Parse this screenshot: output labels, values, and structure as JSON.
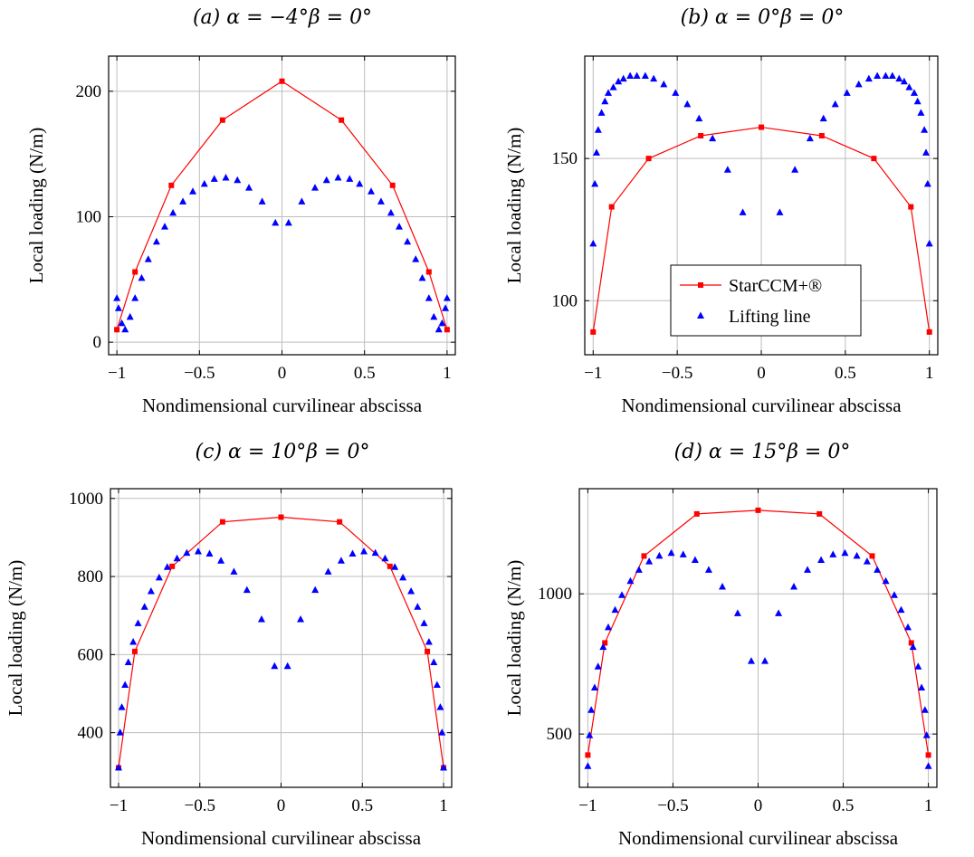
{
  "colors": {
    "cfd": "#ff0000",
    "ll": "#0000ff",
    "grid": "#bdbdbd"
  },
  "legend": {
    "entries": [
      "StarCCM+®",
      "Lifting line"
    ],
    "panel": 1,
    "placement": "bottom-center"
  },
  "chart_data": [
    {
      "type": "line",
      "title": {
        "prefix": "(a)",
        "body": "α = −4°β = 0°"
      },
      "xlabel": "Nondimensional curvilinear abscissa",
      "ylabel": "Local loading (N/m)",
      "xlim": [
        -1.05,
        1.05
      ],
      "ylim": [
        -10,
        228
      ],
      "xticks": [
        -1,
        -0.5,
        0,
        0.5,
        1
      ],
      "xtick_labels": [
        "−1",
        "−0.5",
        "0",
        "0.5",
        "1"
      ],
      "yticks": [
        0,
        100,
        200
      ],
      "ytick_labels": [
        "0",
        "100",
        "200"
      ],
      "grid": true,
      "series": [
        {
          "name": "StarCCM+®",
          "mode": "line",
          "x": [
            -1,
            -0.89,
            -0.67,
            -0.36,
            0,
            0.36,
            0.67,
            0.89,
            1
          ],
          "y": [
            10,
            56,
            125,
            177,
            208,
            177,
            125,
            56,
            10
          ]
        },
        {
          "name": "Lifting line",
          "mode": "scatter",
          "x": [
            -1,
            -0.99,
            -0.97,
            -0.95,
            -0.92,
            -0.89,
            -0.85,
            -0.81,
            -0.76,
            -0.71,
            -0.66,
            -0.6,
            -0.54,
            -0.47,
            -0.41,
            -0.34,
            -0.27,
            -0.2,
            -0.12,
            -0.04,
            0.04,
            0.12,
            0.2,
            0.27,
            0.34,
            0.41,
            0.47,
            0.54,
            0.6,
            0.66,
            0.71,
            0.76,
            0.81,
            0.85,
            0.89,
            0.92,
            0.95,
            0.97,
            0.99,
            1
          ],
          "y": [
            35,
            27,
            15,
            10,
            20,
            35,
            51,
            66,
            80,
            92,
            103,
            112,
            120,
            126,
            130,
            131,
            129,
            123,
            112,
            95,
            95,
            112,
            123,
            129,
            131,
            130,
            126,
            120,
            112,
            103,
            92,
            80,
            66,
            51,
            35,
            20,
            10,
            15,
            27,
            35
          ]
        }
      ]
    },
    {
      "type": "line",
      "title": {
        "prefix": "(b)",
        "body": "α = 0°β = 0°"
      },
      "xlabel": "Nondimensional curvilinear abscissa",
      "ylabel": "Local loading (N/m)",
      "xlim": [
        -1.05,
        1.05
      ],
      "ylim": [
        81,
        186
      ],
      "xticks": [
        -1,
        -0.5,
        0,
        0.5,
        1
      ],
      "xtick_labels": [
        "−1",
        "−0.5",
        "0",
        "0.5",
        "1"
      ],
      "yticks": [
        100,
        150
      ],
      "ytick_labels": [
        "100",
        "150"
      ],
      "grid": true,
      "series": [
        {
          "name": "StarCCM+®",
          "mode": "line",
          "x": [
            -1,
            -0.89,
            -0.67,
            -0.36,
            0,
            0.36,
            0.67,
            0.89,
            1
          ],
          "y": [
            89,
            133,
            150,
            158,
            161,
            158,
            150,
            133,
            89
          ]
        },
        {
          "name": "Lifting line",
          "mode": "scatter",
          "x": [
            -1,
            -0.99,
            -0.98,
            -0.97,
            -0.95,
            -0.93,
            -0.91,
            -0.88,
            -0.85,
            -0.82,
            -0.78,
            -0.74,
            -0.69,
            -0.64,
            -0.58,
            -0.51,
            -0.44,
            -0.37,
            -0.29,
            -0.2,
            -0.11,
            0.11,
            0.2,
            0.29,
            0.37,
            0.44,
            0.51,
            0.58,
            0.64,
            0.69,
            0.74,
            0.78,
            0.82,
            0.85,
            0.88,
            0.91,
            0.93,
            0.95,
            0.97,
            0.98,
            0.99,
            1
          ],
          "y": [
            120,
            141,
            152,
            160,
            166,
            170,
            173,
            175,
            177,
            178,
            179,
            179,
            179,
            178,
            176,
            173,
            169,
            164,
            157,
            146,
            131,
            131,
            146,
            157,
            164,
            169,
            173,
            176,
            178,
            179,
            179,
            179,
            178,
            177,
            175,
            173,
            170,
            166,
            160,
            152,
            141,
            120
          ]
        }
      ]
    },
    {
      "type": "line",
      "title": {
        "prefix": "(c)",
        "body": "α = 10°β = 0°"
      },
      "xlabel": "Nondimensional curvilinear abscissa",
      "ylabel": "Local loading (N/m)",
      "xlim": [
        -1.05,
        1.05
      ],
      "ylim": [
        260,
        1025
      ],
      "xticks": [
        -1,
        -0.5,
        0,
        0.5,
        1
      ],
      "xtick_labels": [
        "−1",
        "−0.5",
        "0",
        "0.5",
        "1"
      ],
      "yticks": [
        400,
        600,
        800,
        1000
      ],
      "ytick_labels": [
        "400",
        "600",
        "800",
        "1000"
      ],
      "grid": true,
      "series": [
        {
          "name": "StarCCM+®",
          "mode": "line",
          "x": [
            -1,
            -0.9,
            -0.67,
            -0.36,
            0,
            0.36,
            0.67,
            0.9,
            1
          ],
          "y": [
            310,
            608,
            826,
            940,
            952,
            940,
            826,
            608,
            310
          ]
        },
        {
          "name": "Lifting line",
          "mode": "scatter",
          "x": [
            -1,
            -0.99,
            -0.98,
            -0.96,
            -0.94,
            -0.91,
            -0.88,
            -0.84,
            -0.8,
            -0.75,
            -0.7,
            -0.64,
            -0.58,
            -0.51,
            -0.44,
            -0.37,
            -0.29,
            -0.21,
            -0.12,
            -0.04,
            0.04,
            0.12,
            0.21,
            0.29,
            0.37,
            0.44,
            0.51,
            0.58,
            0.64,
            0.7,
            0.75,
            0.8,
            0.84,
            0.88,
            0.91,
            0.94,
            0.96,
            0.98,
            0.99,
            1
          ],
          "y": [
            310,
            400,
            465,
            522,
            580,
            632,
            680,
            722,
            762,
            797,
            824,
            846,
            860,
            864,
            858,
            840,
            812,
            765,
            690,
            570,
            570,
            690,
            765,
            812,
            840,
            858,
            864,
            860,
            846,
            824,
            797,
            762,
            722,
            680,
            632,
            580,
            522,
            465,
            400,
            310
          ]
        }
      ]
    },
    {
      "type": "line",
      "title": {
        "prefix": "(d)",
        "body": "α = 15°β = 0°"
      },
      "xlabel": "Nondimensional curvilinear abscissa",
      "ylabel": "Local loading (N/m)",
      "xlim": [
        -1.05,
        1.05
      ],
      "ylim": [
        310,
        1375
      ],
      "xticks": [
        -1,
        -0.5,
        0,
        0.5,
        1
      ],
      "xtick_labels": [
        "−1",
        "−0.5",
        "0",
        "0.5",
        "1"
      ],
      "yticks": [
        500,
        1000
      ],
      "ytick_labels": [
        "500",
        "1000"
      ],
      "grid": true,
      "series": [
        {
          "name": "StarCCM+®",
          "mode": "line",
          "x": [
            -1,
            -0.9,
            -0.67,
            -0.36,
            0,
            0.36,
            0.67,
            0.9,
            1
          ],
          "y": [
            425,
            825,
            1135,
            1285,
            1298,
            1285,
            1135,
            825,
            425
          ]
        },
        {
          "name": "Lifting line",
          "mode": "scatter",
          "x": [
            -1,
            -0.99,
            -0.98,
            -0.96,
            -0.94,
            -0.91,
            -0.88,
            -0.84,
            -0.8,
            -0.75,
            -0.7,
            -0.64,
            -0.58,
            -0.51,
            -0.44,
            -0.37,
            -0.29,
            -0.21,
            -0.12,
            -0.04,
            0.04,
            0.12,
            0.21,
            0.29,
            0.37,
            0.44,
            0.51,
            0.58,
            0.64,
            0.7,
            0.75,
            0.8,
            0.84,
            0.88,
            0.91,
            0.94,
            0.96,
            0.98,
            0.99,
            1
          ],
          "y": [
            385,
            495,
            585,
            665,
            740,
            810,
            880,
            942,
            995,
            1045,
            1085,
            1115,
            1135,
            1145,
            1140,
            1120,
            1085,
            1025,
            930,
            760,
            760,
            930,
            1025,
            1085,
            1120,
            1140,
            1145,
            1135,
            1115,
            1085,
            1045,
            995,
            942,
            880,
            810,
            740,
            665,
            585,
            495,
            385
          ]
        }
      ]
    }
  ]
}
